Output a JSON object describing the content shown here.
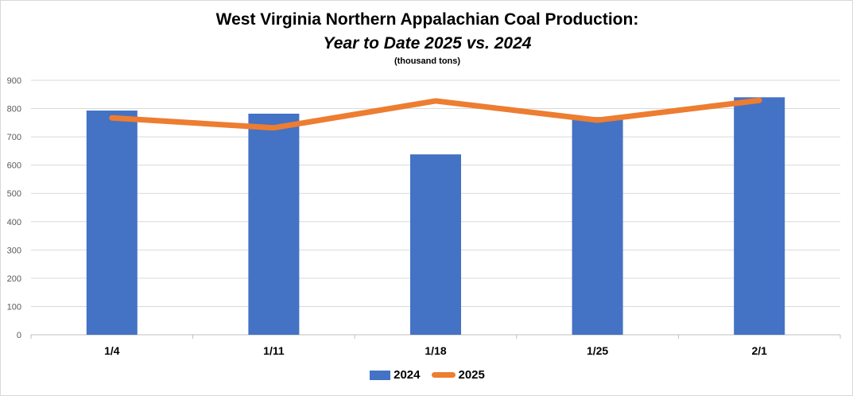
{
  "chart_data": {
    "type": "bar",
    "title": "West Virginia Northern Appalachian Coal Production:",
    "subtitle": "Year to Date 2025 vs. 2024",
    "unit_label": "(thousand tons)",
    "categories": [
      "1/4",
      "1/11",
      "1/18",
      "1/25",
      "2/1"
    ],
    "ylim": [
      0,
      900
    ],
    "yticks": [
      "0",
      "100",
      "200",
      "300",
      "400",
      "500",
      "600",
      "700",
      "800",
      "900"
    ],
    "grid": true,
    "legend_position": "bottom",
    "series": [
      {
        "name": "2024",
        "type": "bar",
        "color": "#4472c4",
        "values": [
          793,
          782,
          638,
          770,
          840
        ]
      },
      {
        "name": "2025",
        "type": "line",
        "color": "#ed7d31",
        "values": [
          767,
          732,
          827,
          759,
          829
        ]
      }
    ]
  }
}
